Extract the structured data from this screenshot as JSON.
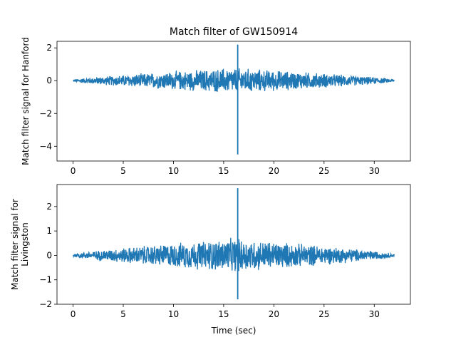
{
  "chart_data": [
    {
      "type": "line",
      "title": "Match filter of GW150914",
      "xlabel": "",
      "ylabel": "Match filter signal for Hanford",
      "xlim": [
        -1.6,
        33.6
      ],
      "ylim": [
        -4.9,
        2.4
      ],
      "xticks": [
        "0",
        "5",
        "10",
        "15",
        "20",
        "25",
        "30"
      ],
      "yticks": [
        "2",
        "0",
        "−2",
        "−4"
      ],
      "color": "#1f77b4",
      "series": [
        {
          "x_range": [
            0,
            32
          ],
          "envelope": {
            "edge_amplitude": 0.08,
            "center_amplitude": 0.85,
            "center": 16
          },
          "spike": {
            "x": 16.4,
            "max": 2.2,
            "min": -4.5
          }
        }
      ]
    },
    {
      "type": "line",
      "title": "",
      "xlabel": "Time (sec)",
      "ylabel": "Match filter signal for\nLivingston",
      "xlim": [
        -1.6,
        33.6
      ],
      "ylim": [
        -2.0,
        2.9
      ],
      "xticks": [
        "0",
        "5",
        "10",
        "15",
        "20",
        "25",
        "30"
      ],
      "yticks": [
        "2",
        "1",
        "0",
        "−1",
        "−2"
      ],
      "color": "#1f77b4",
      "series": [
        {
          "x_range": [
            0,
            32
          ],
          "envelope": {
            "edge_amplitude": 0.06,
            "center_amplitude": 0.75,
            "center": 16
          },
          "spike": {
            "x": 16.4,
            "max": 2.75,
            "min": -1.8
          }
        }
      ]
    }
  ]
}
